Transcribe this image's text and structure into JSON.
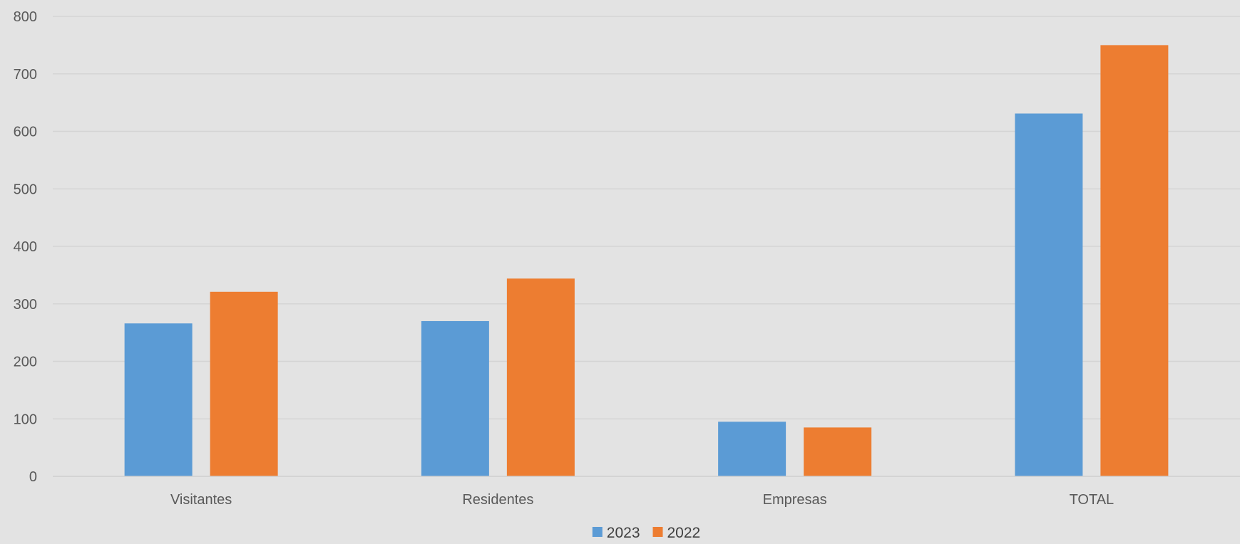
{
  "chart_data": {
    "type": "bar",
    "title": "",
    "xlabel": "",
    "ylabel": "",
    "categories": [
      "Visitantes",
      "Residentes",
      "Empresas",
      "TOTAL"
    ],
    "series": [
      {
        "name": "2023",
        "color": "#5b9bd5",
        "values": [
          266,
          270,
          95,
          631
        ]
      },
      {
        "name": "2022",
        "color": "#ed7d31",
        "values": [
          321,
          344,
          85,
          750
        ]
      }
    ],
    "ylim": [
      0,
      800
    ],
    "yticks": [
      0,
      100,
      200,
      300,
      400,
      500,
      600,
      700,
      800
    ],
    "grid": true,
    "legend_position": "bottom-center"
  }
}
